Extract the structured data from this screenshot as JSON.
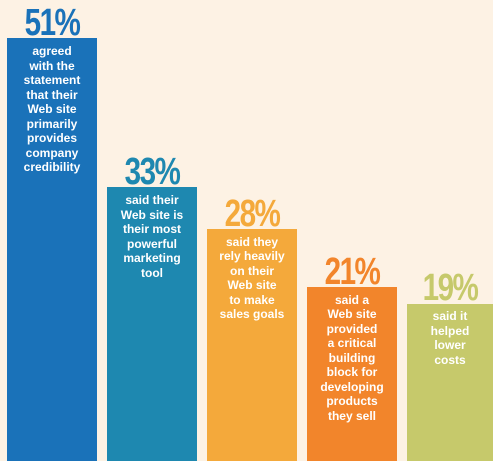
{
  "chart_data": {
    "type": "bar",
    "categories": [
      "agreed\nwith the\nstatement\nthat their\nWeb site\nprimarily\nprovides\ncompany\ncredibility",
      "said their\nWeb site is\ntheir most\npowerful\nmarketing\ntool",
      "said they\nrely heavily\non their\nWeb site\nto make\nsales goals",
      "said a\nWeb site\nprovided\na critical\nbuilding\nblock for\ndeveloping\nproducts\nthey sell",
      "said it\nhelped\nlower\ncosts"
    ],
    "values": [
      51,
      33,
      28,
      21,
      19
    ],
    "value_labels": [
      "51%",
      "33%",
      "28%",
      "21%",
      "19%"
    ],
    "colors": [
      "#1a72b9",
      "#1e88b0",
      "#f4a93b",
      "#f2852b",
      "#c6c96b"
    ]
  }
}
